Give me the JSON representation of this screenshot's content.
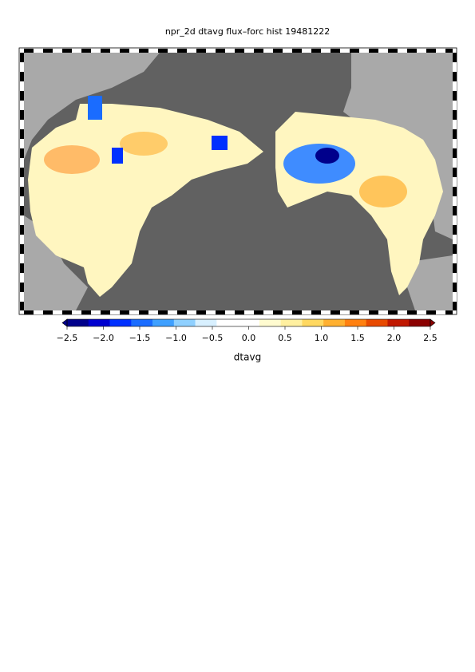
{
  "title": "npr_2d dtavg flux–forc hist 19481222",
  "colorbar": {
    "label": "dtavg",
    "lim": [
      -2.5,
      2.5
    ],
    "ticks": [
      {
        "value": -2.5,
        "label": "−2.5"
      },
      {
        "value": -2,
        "label": "−2.0"
      },
      {
        "value": -1.5,
        "label": "−1.5"
      },
      {
        "value": -1,
        "label": "−1.0"
      },
      {
        "value": -0.5,
        "label": "−0.5"
      },
      {
        "value": 0,
        "label": "0.0"
      },
      0.5,
      {
        "value": 1,
        "label": "1.0"
      },
      1.5,
      {
        "value": 2,
        "label": "2.0"
      },
      2.5
    ],
    "colors": [
      "#00008b",
      "#0000d0",
      "#0030ff",
      "#1a6cff",
      "#3fa0ff",
      "#8fd0ff",
      "#d8f0ff",
      "#ffffff",
      "#ffffff",
      "#fffbd0",
      "#fff0a0",
      "#ffd860",
      "#ffb030",
      "#ff8010",
      "#e84a00",
      "#c01800",
      "#8b0000"
    ]
  }
}
